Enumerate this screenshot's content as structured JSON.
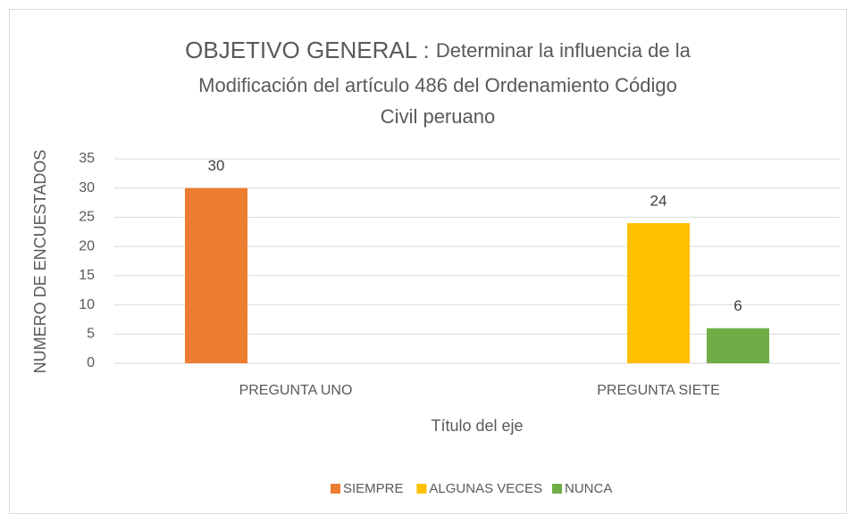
{
  "chart_data": {
    "type": "bar",
    "title": {
      "lead": "OBJETIVO GENERAL :",
      "lines": [
        "Determinar la influencia de la",
        "Modificación del artículo 486 del Ordenamiento Código",
        "Civil peruano"
      ]
    },
    "x_label": "Título del eje",
    "y_label": "NUMERO DE ENCUESTADOS",
    "categories": [
      "PREGUNTA UNO",
      "PREGUNTA SIETE"
    ],
    "series": [
      {
        "name": "SIEMPRE",
        "color": "#ED7D31",
        "values": [
          30,
          null
        ]
      },
      {
        "name": "ALGUNAS VECES",
        "color": "#FFC000",
        "values": [
          null,
          24
        ]
      },
      {
        "name": "NUNCA",
        "color": "#70AD47",
        "values": [
          null,
          6
        ]
      }
    ],
    "ylim": [
      0,
      35
    ],
    "yticks": [
      0,
      5,
      10,
      15,
      20,
      25,
      30,
      35
    ],
    "grid": true,
    "legend": "bottom"
  }
}
